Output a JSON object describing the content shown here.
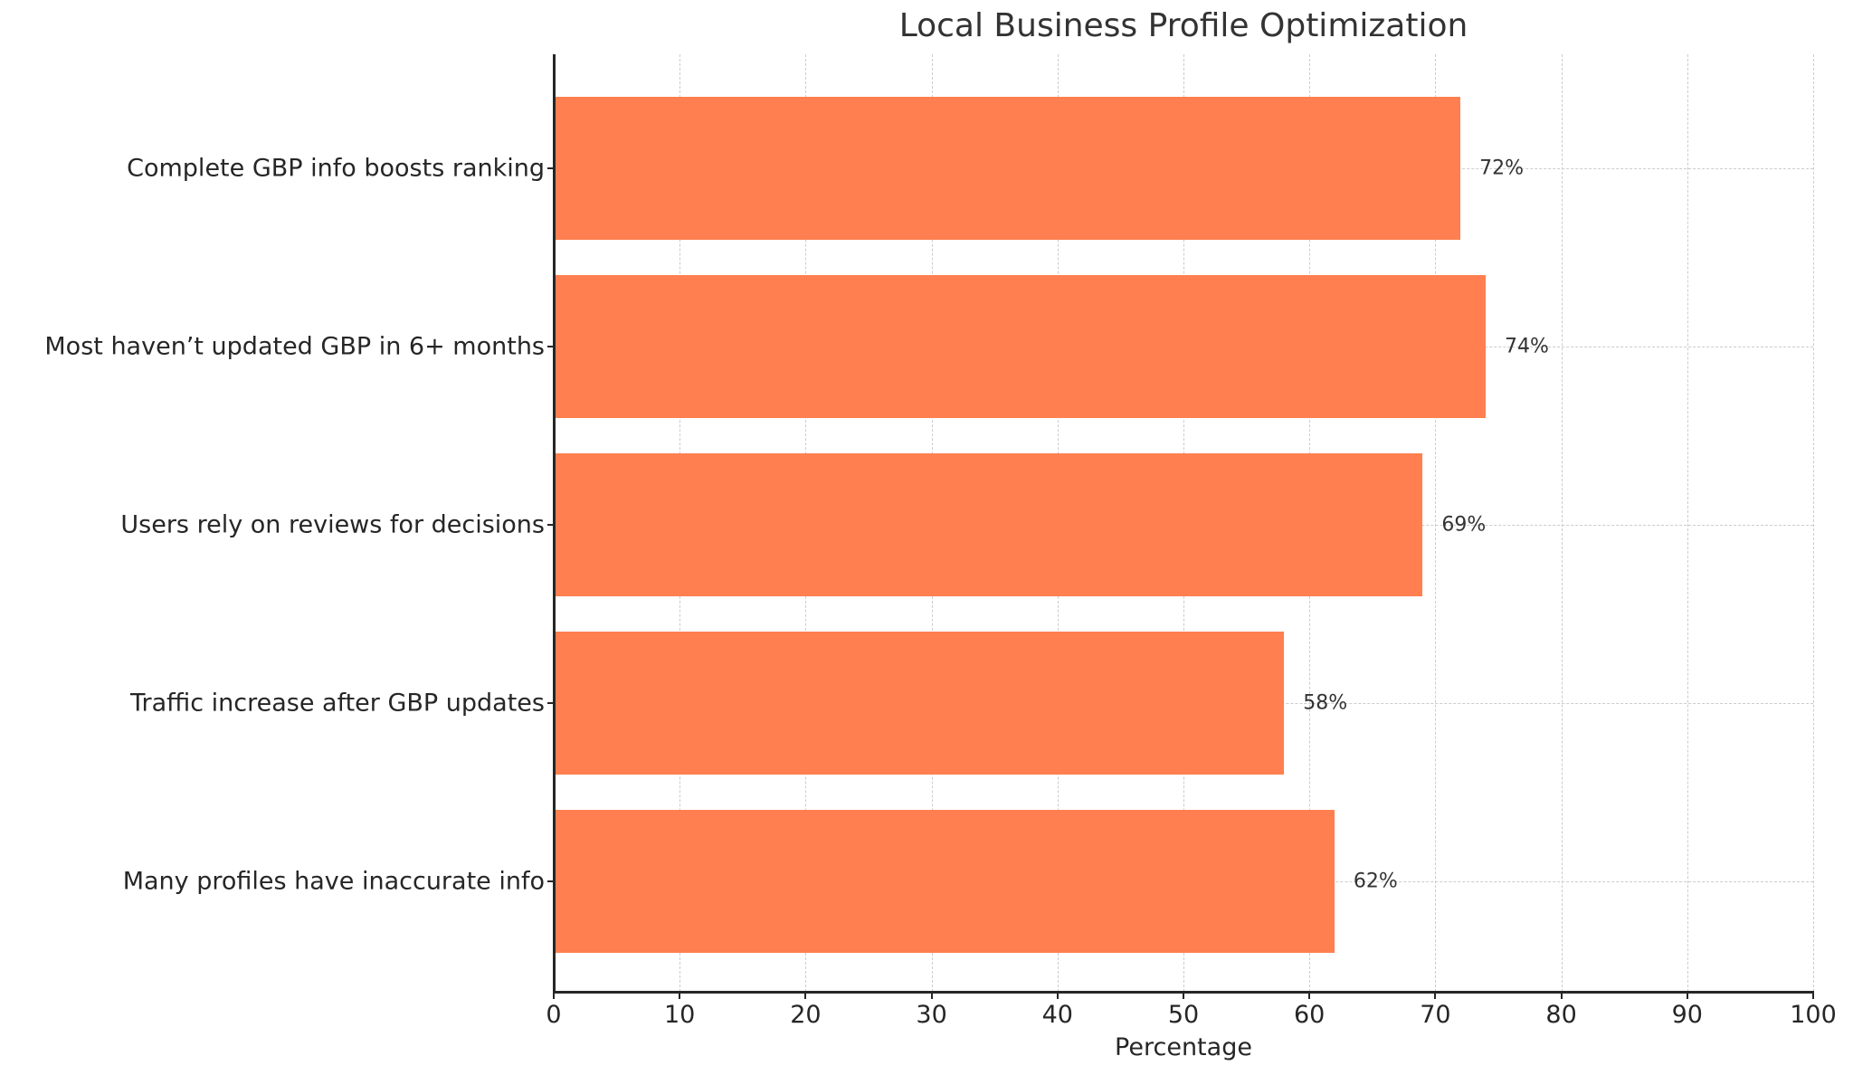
{
  "chart_data": {
    "type": "bar",
    "orientation": "horizontal",
    "title": "Local Business Profile Optimization",
    "xlabel": "Percentage",
    "ylabel": "",
    "xlim": [
      0,
      100
    ],
    "xticks": [
      0,
      10,
      20,
      30,
      40,
      50,
      60,
      70,
      80,
      90,
      100
    ],
    "grid": true,
    "legend": null,
    "categories": [
      "Complete GBP info boosts ranking",
      "Most haven’t updated GBP in 6+ months",
      "Users rely on reviews for decisions",
      "Traffic increase after GBP updates",
      "Many profiles have inaccurate info"
    ],
    "values": [
      72,
      74,
      69,
      58,
      62
    ],
    "value_labels": [
      "72%",
      "74%",
      "69%",
      "58%",
      "62%"
    ],
    "colors": {
      "bar": "#FF7F50",
      "grid": "#cccccc",
      "axis": "#262626",
      "text": "#262626"
    }
  }
}
